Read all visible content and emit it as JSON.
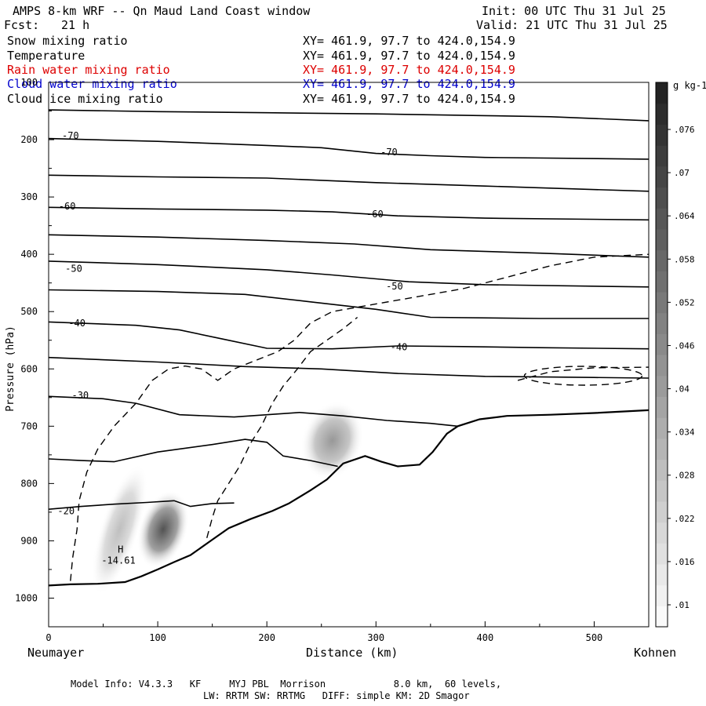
{
  "header": {
    "title": "AMPS 8-km WRF -- Qn Maud Land Coast window",
    "fcst_label": "Fcst:",
    "fcst_value": "21 h",
    "init": "Init: 00 UTC Thu 31 Jul 25",
    "valid": "Valid: 21 UTC Thu 31 Jul 25"
  },
  "fields": [
    {
      "name": "Snow mixing ratio",
      "xy": "XY= 461.9, 97.7 to 424.0,154.9",
      "color": "#000000"
    },
    {
      "name": "Temperature",
      "xy": "XY= 461.9, 97.7 to 424.0,154.9",
      "color": "#000000"
    },
    {
      "name": "Rain water mixing ratio",
      "xy": "XY= 461.9, 97.7 to 424.0,154.9",
      "color": "#dd0000"
    },
    {
      "name": "Cloud water mixing ratio",
      "xy": "XY= 461.9, 97.7 to 424.0,154.9",
      "color": "#0000cc"
    },
    {
      "name": "Cloud ice mixing ratio",
      "xy": "XY= 461.9, 97.7 to 424.0,154.9",
      "color": "#000000"
    }
  ],
  "footer": {
    "line1": "Model Info: V4.3.3   KF     MYJ PBL  Morrison            8.0 km,  60 levels,",
    "line2": "LW: RRTM SW: RRTMG   DIFF: simple KM: 2D Smagor"
  },
  "chart_data": {
    "type": "contour",
    "xlabel": "Distance (km)",
    "ylabel": "Pressure (hPa)",
    "x_left_label": "Neumayer",
    "x_right_label": "Kohnen",
    "xlim": [
      0,
      550
    ],
    "ylim": [
      1050,
      100
    ],
    "x_ticks": [
      0,
      100,
      200,
      300,
      400,
      500
    ],
    "y_ticks": [
      100,
      200,
      300,
      400,
      500,
      600,
      700,
      800,
      900,
      1000
    ],
    "colorbar": {
      "unit": "g kg-1",
      "ticks": [
        ".01",
        ".016",
        ".022",
        ".028",
        ".034",
        ".04",
        ".046",
        ".052",
        ".058",
        ".064",
        ".07",
        ".076"
      ]
    },
    "temperature_labels": [
      {
        "label": "-70",
        "x": 20,
        "p": 193
      },
      {
        "label": "-70",
        "x": 312,
        "p": 222
      },
      {
        "label": "-60",
        "x": 17,
        "p": 316
      },
      {
        "label": "-60",
        "x": 299,
        "p": 330
      },
      {
        "label": "-50",
        "x": 23,
        "p": 425
      },
      {
        "label": "-50",
        "x": 317,
        "p": 456
      },
      {
        "label": "-40",
        "x": 26,
        "p": 520
      },
      {
        "label": "-40",
        "x": 321,
        "p": 562
      },
      {
        "label": "-30",
        "x": 29,
        "p": 646
      },
      {
        "label": "-20",
        "x": 16,
        "p": 848
      }
    ],
    "annotations": [
      {
        "label": "H",
        "x": 66,
        "p": 915
      },
      {
        "label": "-14.61",
        "x": 64,
        "p": 934
      }
    ],
    "terrain": [
      [
        0,
        978
      ],
      [
        20,
        976
      ],
      [
        45,
        975
      ],
      [
        70,
        972
      ],
      [
        85,
        962
      ],
      [
        100,
        950
      ],
      [
        115,
        937
      ],
      [
        130,
        925
      ],
      [
        150,
        898
      ],
      [
        165,
        878
      ],
      [
        185,
        862
      ],
      [
        205,
        848
      ],
      [
        220,
        835
      ],
      [
        240,
        812
      ],
      [
        255,
        793
      ],
      [
        270,
        765
      ],
      [
        290,
        752
      ],
      [
        305,
        762
      ],
      [
        320,
        770
      ],
      [
        340,
        767
      ],
      [
        352,
        745
      ],
      [
        365,
        713
      ],
      [
        375,
        700
      ],
      [
        395,
        688
      ],
      [
        420,
        682
      ],
      [
        460,
        680
      ],
      [
        500,
        677
      ],
      [
        550,
        672
      ]
    ],
    "isotherms": [
      [
        [
          0,
          148
        ],
        [
          100,
          151
        ],
        [
          200,
          153
        ],
        [
          300,
          155
        ],
        [
          400,
          158
        ],
        [
          460,
          160
        ],
        [
          550,
          167
        ]
      ],
      [
        [
          0,
          198
        ],
        [
          100,
          203
        ],
        [
          200,
          210
        ],
        [
          250,
          214
        ],
        [
          300,
          224
        ],
        [
          350,
          228
        ],
        [
          400,
          231
        ],
        [
          550,
          234
        ]
      ],
      [
        [
          0,
          262
        ],
        [
          100,
          265
        ],
        [
          200,
          267
        ],
        [
          300,
          275
        ],
        [
          400,
          281
        ],
        [
          550,
          290
        ]
      ],
      [
        [
          0,
          318
        ],
        [
          100,
          321
        ],
        [
          200,
          323
        ],
        [
          260,
          326
        ],
        [
          320,
          333
        ],
        [
          400,
          337
        ],
        [
          550,
          340
        ]
      ],
      [
        [
          0,
          366
        ],
        [
          100,
          370
        ],
        [
          200,
          376
        ],
        [
          280,
          382
        ],
        [
          350,
          392
        ],
        [
          450,
          398
        ],
        [
          550,
          405
        ]
      ],
      [
        [
          0,
          412
        ],
        [
          100,
          418
        ],
        [
          200,
          427
        ],
        [
          260,
          436
        ],
        [
          330,
          448
        ],
        [
          400,
          453
        ],
        [
          550,
          457
        ]
      ],
      [
        [
          0,
          462
        ],
        [
          100,
          465
        ],
        [
          180,
          470
        ],
        [
          240,
          483
        ],
        [
          300,
          496
        ],
        [
          350,
          510
        ],
        [
          450,
          512
        ],
        [
          550,
          512
        ]
      ],
      [
        [
          0,
          518
        ],
        [
          80,
          524
        ],
        [
          120,
          532
        ],
        [
          160,
          548
        ],
        [
          200,
          564
        ],
        [
          260,
          565
        ],
        [
          320,
          560
        ],
        [
          380,
          561
        ],
        [
          450,
          563
        ],
        [
          550,
          565
        ]
      ],
      [
        [
          0,
          580
        ],
        [
          100,
          588
        ],
        [
          180,
          596
        ],
        [
          250,
          600
        ],
        [
          320,
          608
        ],
        [
          400,
          613
        ],
        [
          500,
          615
        ],
        [
          550,
          616
        ]
      ],
      [
        [
          0,
          648
        ],
        [
          50,
          652
        ],
        [
          80,
          660
        ],
        [
          120,
          680
        ],
        [
          170,
          684
        ],
        [
          230,
          676
        ],
        [
          270,
          682
        ],
        [
          310,
          690
        ],
        [
          350,
          695
        ],
        [
          375,
          700
        ]
      ],
      [
        [
          0,
          757
        ],
        [
          30,
          760
        ],
        [
          60,
          762
        ],
        [
          100,
          745
        ],
        [
          150,
          732
        ],
        [
          180,
          723
        ],
        [
          200,
          728
        ],
        [
          215,
          752
        ],
        [
          240,
          760
        ],
        [
          265,
          770
        ]
      ],
      [
        [
          0,
          845
        ],
        [
          30,
          840
        ],
        [
          60,
          836
        ],
        [
          90,
          833
        ],
        [
          115,
          830
        ],
        [
          130,
          840
        ],
        [
          150,
          835
        ],
        [
          170,
          834
        ]
      ]
    ],
    "dashed_contours": [
      [
        [
          20,
          970
        ],
        [
          22,
          930
        ],
        [
          26,
          880
        ],
        [
          28,
          830
        ],
        [
          35,
          780
        ],
        [
          45,
          740
        ],
        [
          60,
          700
        ],
        [
          80,
          660
        ],
        [
          95,
          620
        ],
        [
          110,
          600
        ],
        [
          125,
          595
        ],
        [
          140,
          600
        ],
        [
          155,
          620
        ],
        [
          170,
          600
        ],
        [
          190,
          585
        ],
        [
          210,
          570
        ],
        [
          225,
          550
        ],
        [
          240,
          520
        ],
        [
          260,
          500
        ],
        [
          290,
          490
        ],
        [
          320,
          480
        ],
        [
          350,
          470
        ],
        [
          380,
          460
        ],
        [
          420,
          440
        ],
        [
          460,
          420
        ],
        [
          500,
          405
        ],
        [
          550,
          400
        ]
      ],
      [
        [
          145,
          895
        ],
        [
          150,
          860
        ],
        [
          155,
          830
        ],
        [
          165,
          800
        ],
        [
          175,
          770
        ],
        [
          185,
          730
        ],
        [
          195,
          700
        ],
        [
          205,
          660
        ],
        [
          215,
          630
        ],
        [
          228,
          600
        ],
        [
          240,
          570
        ],
        [
          255,
          550
        ],
        [
          270,
          530
        ],
        [
          283,
          510
        ]
      ],
      [
        [
          430,
          620
        ],
        [
          460,
          605
        ],
        [
          500,
          598
        ],
        [
          550,
          597
        ]
      ]
    ],
    "ice_blobs": [
      {
        "x": 65,
        "p": 880,
        "rx": 18,
        "rp": 120,
        "intensity": 0.28
      },
      {
        "x": 105,
        "p": 880,
        "rx": 22,
        "rp": 70,
        "intensity": 0.75
      },
      {
        "x": 260,
        "p": 725,
        "rx": 28,
        "rp": 70,
        "intensity": 0.45
      }
    ]
  }
}
